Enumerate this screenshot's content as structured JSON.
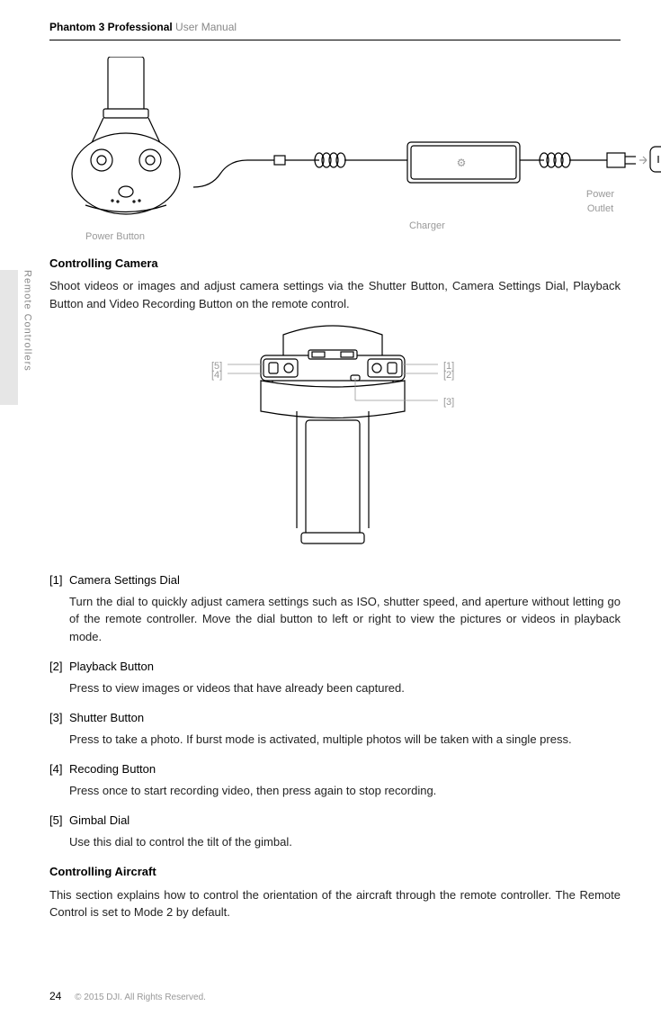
{
  "header": {
    "brand": "Phantom 3 Professional",
    "suffix": "User Manual"
  },
  "sideTabLabel": "Remote Controllers",
  "figure1": {
    "captions": {
      "powerButton": "Power Button",
      "charger": "Charger",
      "powerOutlet": "Power Outlet"
    },
    "colors": {
      "stroke": "#000000",
      "captionColor": "#999999"
    }
  },
  "sectionA": {
    "heading": "Controlling Camera",
    "paragraph": "Shoot videos or images and adjust camera settings via the Shutter Button, Camera Settings Dial, Playback Button and Video Recording Button on the remote control."
  },
  "figure2": {
    "callouts": {
      "c1": "[1]",
      "c2": "[2]",
      "c3": "[3]",
      "c4": "[4]",
      "c5": "[5]"
    }
  },
  "items": [
    {
      "num": "[1]",
      "title": "Camera Settings Dial",
      "desc": "Turn the dial to quickly adjust camera settings such as ISO, shutter speed, and aperture without letting go of the remote controller. Move the dial button to left or right to view the pictures or videos in playback mode."
    },
    {
      "num": "[2]",
      "title": "Playback Button",
      "desc": "Press to view images or videos that have already been captured."
    },
    {
      "num": "[3]",
      "title": "Shutter Button",
      "desc": "Press to take a photo. If burst mode is activated, multiple photos will be taken with a single press."
    },
    {
      "num": "[4]",
      "title": "Recoding Button",
      "desc": "Press once to start recording video, then press again to stop recording."
    },
    {
      "num": "[5]",
      "title": "Gimbal Dial",
      "desc": "Use this dial to control the tilt of the gimbal."
    }
  ],
  "sectionB": {
    "heading": "Controlling Aircraft",
    "paragraph": "This section explains how to control the orientation of the aircraft through the remote controller. The Remote Control is set to Mode 2 by default."
  },
  "footer": {
    "page": "24",
    "copyright": "© 2015 DJI. All Rights Reserved."
  }
}
